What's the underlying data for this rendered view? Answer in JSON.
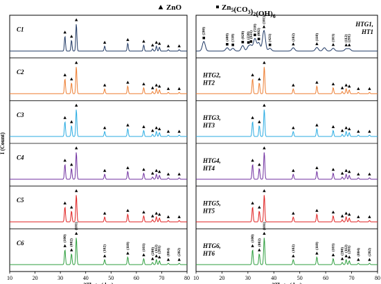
{
  "legend": {
    "items": [
      {
        "marker": "triangle",
        "label": "ZnO"
      },
      {
        "marker": "square",
        "label": "Zn5(CO3)2(OH)6"
      }
    ]
  },
  "chart_data": [
    {
      "type": "line",
      "panel": "left",
      "xlabel": "2Theta (deg)",
      "ylabel": "I (Count)",
      "xlim": [
        10,
        80
      ],
      "xticks": [
        10,
        20,
        30,
        40,
        50,
        60,
        70,
        80
      ],
      "grid": false,
      "series": [
        {
          "name": "C1",
          "color": "#1f3864"
        },
        {
          "name": "C2",
          "color": "#ed7d31"
        },
        {
          "name": "C3",
          "color": "#29abe2"
        },
        {
          "name": "C4",
          "color": "#7030a0"
        },
        {
          "name": "C5",
          "color": "#e02020"
        },
        {
          "name": "C6",
          "color": "#2e9e3e"
        }
      ],
      "zno_peaks": [
        31.8,
        34.4,
        36.3,
        47.5,
        56.6,
        62.9,
        66.4,
        67.9,
        69.1,
        72.6,
        76.9
      ],
      "peak_labels": [
        {
          "x": 31.8,
          "text": "(100)"
        },
        {
          "x": 34.4,
          "text": "(002)"
        },
        {
          "x": 36.3,
          "text": "(101)"
        },
        {
          "x": 47.5,
          "text": "(102)"
        },
        {
          "x": 56.6,
          "text": "(110)"
        },
        {
          "x": 62.9,
          "text": "(103)"
        },
        {
          "x": 66.4,
          "text": "(200)"
        },
        {
          "x": 67.9,
          "text": "(112)"
        },
        {
          "x": 69.1,
          "text": "(201)"
        },
        {
          "x": 72.6,
          "text": "(004)"
        },
        {
          "x": 76.9,
          "text": "(202)"
        }
      ]
    },
    {
      "type": "line",
      "panel": "right",
      "xlabel": "2Theta (deg)",
      "xlim": [
        10,
        80
      ],
      "xticks": [
        10,
        20,
        30,
        40,
        50,
        60,
        70,
        80
      ],
      "grid": false,
      "series": [
        {
          "name": "HTG1, HT1",
          "line1": "HTG1,",
          "line2": "HT1",
          "color": "#1f3864"
        },
        {
          "name": "HTG2, HT2",
          "line1": "HTG2,",
          "line2": "HT2",
          "color": "#ed7d31"
        },
        {
          "name": "HTG3, HT3",
          "line1": "HTG3,",
          "line2": "HT3",
          "color": "#29abe2"
        },
        {
          "name": "HTG4, HT4",
          "line1": "HTG4,",
          "line2": "HT4",
          "color": "#7030a0"
        },
        {
          "name": "HTG5, HT5",
          "line1": "HTG5,",
          "line2": "HT5",
          "color": "#e02020"
        },
        {
          "name": "HTG6, HT6",
          "line1": "HTG6,",
          "line2": "HT6",
          "color": "#2e9e3e"
        }
      ],
      "zno_peaks": [
        31.8,
        34.4,
        36.3,
        47.5,
        56.6,
        62.9,
        66.4,
        67.9,
        69.1,
        72.6,
        76.9
      ],
      "top_trace_labels": [
        {
          "x": 13.0,
          "text": "(200)",
          "marker": "square"
        },
        {
          "x": 22.0,
          "text": "(400)",
          "marker": "square"
        },
        {
          "x": 24.2,
          "text": "(310)",
          "marker": "square"
        },
        {
          "x": 28.0,
          "text": "(020)",
          "marker": "square"
        },
        {
          "x": 30.2,
          "text": "(220)",
          "marker": "square"
        },
        {
          "x": 31.2,
          "text": "(021)",
          "marker": "square"
        },
        {
          "x": 32.7,
          "text": "(510)",
          "marker": "square"
        },
        {
          "x": 34.2,
          "text": "(002)",
          "marker": "square"
        },
        {
          "x": 36.2,
          "text": "(101)",
          "marker": "triangle"
        },
        {
          "x": 38.5,
          "text": "(421)",
          "marker": "square"
        },
        {
          "x": 47.5,
          "text": "(102)",
          "marker": "triangle"
        },
        {
          "x": 56.6,
          "text": "(110)",
          "marker": "triangle"
        },
        {
          "x": 62.9,
          "text": "(103)",
          "marker": "triangle"
        },
        {
          "x": 67.9,
          "text": "(112)",
          "marker": "triangle"
        },
        {
          "x": 69.1,
          "text": "(201)",
          "marker": "triangle"
        }
      ],
      "peak_labels": [
        {
          "x": 31.8,
          "text": "(100)"
        },
        {
          "x": 34.4,
          "text": "(002)"
        },
        {
          "x": 36.3,
          "text": "(101)"
        },
        {
          "x": 47.5,
          "text": "(102)"
        },
        {
          "x": 56.6,
          "text": "(110)"
        },
        {
          "x": 62.9,
          "text": "(103)"
        },
        {
          "x": 66.4,
          "text": "(200)"
        },
        {
          "x": 67.9,
          "text": "(112)"
        },
        {
          "x": 69.1,
          "text": "(201)"
        },
        {
          "x": 72.6,
          "text": "(004)"
        },
        {
          "x": 76.9,
          "text": "(202)"
        }
      ]
    }
  ]
}
